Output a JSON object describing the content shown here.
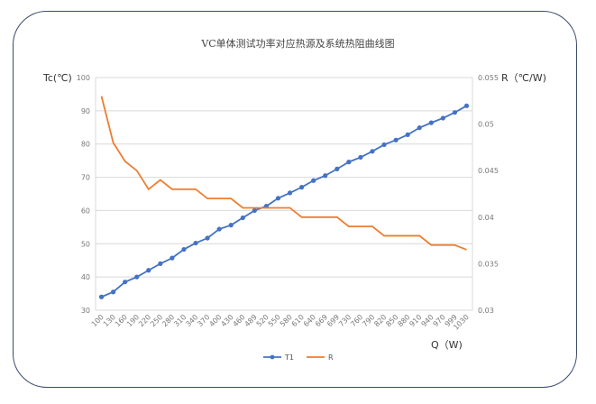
{
  "chart_data": {
    "type": "line",
    "title": "VC单体测试功率对应热源及系统热阻曲线图",
    "xlabel": "Q（W)",
    "ylabel": "Tc(℃)",
    "y2label": "R（℃/W)",
    "categories": [
      "100",
      "130",
      "160",
      "190",
      "220",
      "250",
      "280",
      "310",
      "340",
      "370",
      "400",
      "430",
      "460",
      "489",
      "520",
      "550",
      "580",
      "610",
      "640",
      "669",
      "699",
      "730",
      "760",
      "790",
      "820",
      "850",
      "880",
      "910",
      "940",
      "970",
      "999",
      "1030"
    ],
    "ylim": [
      30,
      100
    ],
    "yticks": [
      "30",
      "40",
      "50",
      "60",
      "70",
      "80",
      "90",
      "100"
    ],
    "y2lim": [
      0.03,
      0.055
    ],
    "y2ticks": [
      "0.03",
      "0.035",
      "0.04",
      "0.045",
      "0.05",
      "0.055"
    ],
    "grid": true,
    "legend": "bottom",
    "series": [
      {
        "name": "T1",
        "axis": "left",
        "color": "#4472C4",
        "markers": true,
        "values": [
          34,
          35.5,
          38.5,
          40,
          42,
          44,
          45.7,
          48.3,
          50.2,
          51.7,
          54.4,
          55.6,
          57.8,
          60,
          61.3,
          63.7,
          65.3,
          67,
          69,
          70.5,
          72.5,
          74.6,
          76,
          77.8,
          79.8,
          81.2,
          82.8,
          84.9,
          86.4,
          87.8,
          89.5,
          91.5
        ]
      },
      {
        "name": "R",
        "axis": "right",
        "color": "#ED7D31",
        "markers": false,
        "values": [
          0.053,
          0.048,
          0.046,
          0.045,
          0.043,
          0.044,
          0.043,
          0.043,
          0.043,
          0.042,
          0.042,
          0.042,
          0.041,
          0.041,
          0.041,
          0.041,
          0.041,
          0.04,
          0.04,
          0.04,
          0.04,
          0.039,
          0.039,
          0.039,
          0.038,
          0.038,
          0.038,
          0.038,
          0.037,
          0.037,
          0.037,
          0.0365
        ]
      }
    ]
  }
}
